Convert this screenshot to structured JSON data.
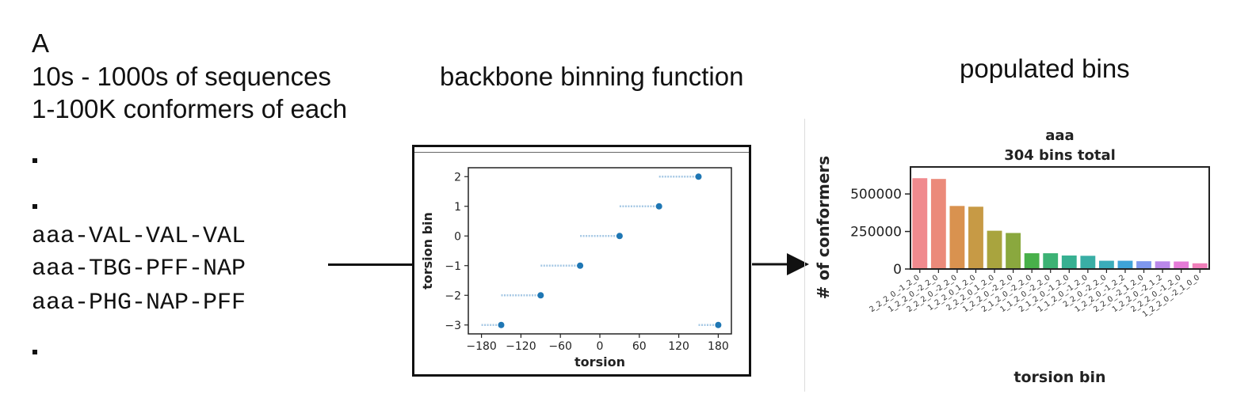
{
  "panel_label": "A",
  "left": {
    "line1": "10s - 1000s of sequences",
    "line2": "1-100K conformers of each",
    "sequences": [
      "aaa-VAL-VAL-VAL",
      "aaa-TBG-PFF-NAP",
      "aaa-PHG-NAP-PFF"
    ]
  },
  "middle": {
    "heading": "backbone binning function"
  },
  "right": {
    "heading": "populated bins"
  },
  "chart_data": [
    {
      "type": "scatter",
      "title": "",
      "xlabel": "torsion",
      "ylabel": "torsion bin",
      "xlim": [
        -200,
        200
      ],
      "ylim": [
        -3.3,
        2.3
      ],
      "xticks": [
        -180,
        -120,
        -60,
        0,
        60,
        120,
        180
      ],
      "yticks": [
        2,
        1,
        0,
        -1,
        -2,
        -3
      ],
      "tick_labels_x": [
        "−180",
        "−120",
        "−60",
        "0",
        "60",
        "120",
        "180"
      ],
      "tick_labels_y": [
        "2",
        "1",
        "0",
        "−1",
        "−2",
        "−3"
      ],
      "points": [
        {
          "x": -150,
          "y": -3
        },
        {
          "x": -90,
          "y": -2
        },
        {
          "x": -30,
          "y": -1
        },
        {
          "x": 30,
          "y": 0
        },
        {
          "x": 90,
          "y": 1
        },
        {
          "x": 150,
          "y": 2
        },
        {
          "x": 180,
          "y": -3
        }
      ],
      "segments": [
        {
          "x0": -180,
          "x1": -150,
          "y": -3
        },
        {
          "x0": -150,
          "x1": -90,
          "y": -2
        },
        {
          "x0": -90,
          "x1": -30,
          "y": -1
        },
        {
          "x0": -30,
          "x1": 30,
          "y": 0
        },
        {
          "x0": 30,
          "x1": 90,
          "y": 1
        },
        {
          "x0": 90,
          "x1": 150,
          "y": 2
        },
        {
          "x0": 150,
          "x1": 180,
          "y": -3
        }
      ],
      "colors": {
        "point": "#1f77b4",
        "segment": "#a6c8e4"
      }
    },
    {
      "type": "bar",
      "title": "aaa",
      "subtitle": "304 bins total",
      "xlabel": "torsion bin",
      "ylabel": "# of conformers",
      "ylim": [
        0,
        680000
      ],
      "yticks": [
        0,
        250000,
        500000
      ],
      "categories": [
        "2_2_2_0_-1_2_0",
        "1_2_2_0_-2_2_0",
        "2_2_2_0_-2_2_0",
        "1_2_2_0_1_2_0",
        "2_2_2_0_1_2_0",
        "1_2_2_0_-2_2_0",
        "2_1_2_0_-2_2_0",
        "1_1_2_0_-2_2_0",
        "2_1_2_0_-1_2_0",
        "1_1_2_0_-1_2_0",
        "2_2_0_-2_2_0",
        "1_2_2_0_-1_2_2",
        "2_2_0_-2_1_2_0",
        "1_2_2_0_-2_1_2",
        "2_2_2_0_-1_2_0",
        "1_2_2_0_-2_1_0_0"
      ],
      "values": [
        605000,
        600000,
        420000,
        415000,
        255000,
        240000,
        105000,
        105000,
        90000,
        88000,
        55000,
        55000,
        52000,
        51000,
        50000,
        38000
      ],
      "colors": [
        "#f08a8e",
        "#eb8a7a",
        "#d9924f",
        "#c79a45",
        "#a9a43e",
        "#8aa83e",
        "#48b04a",
        "#3cb274",
        "#37b091",
        "#39aea5",
        "#3bacba",
        "#3ea3d8",
        "#7f98ee",
        "#ba88ea",
        "#e67bd8",
        "#f07fba"
      ]
    }
  ]
}
